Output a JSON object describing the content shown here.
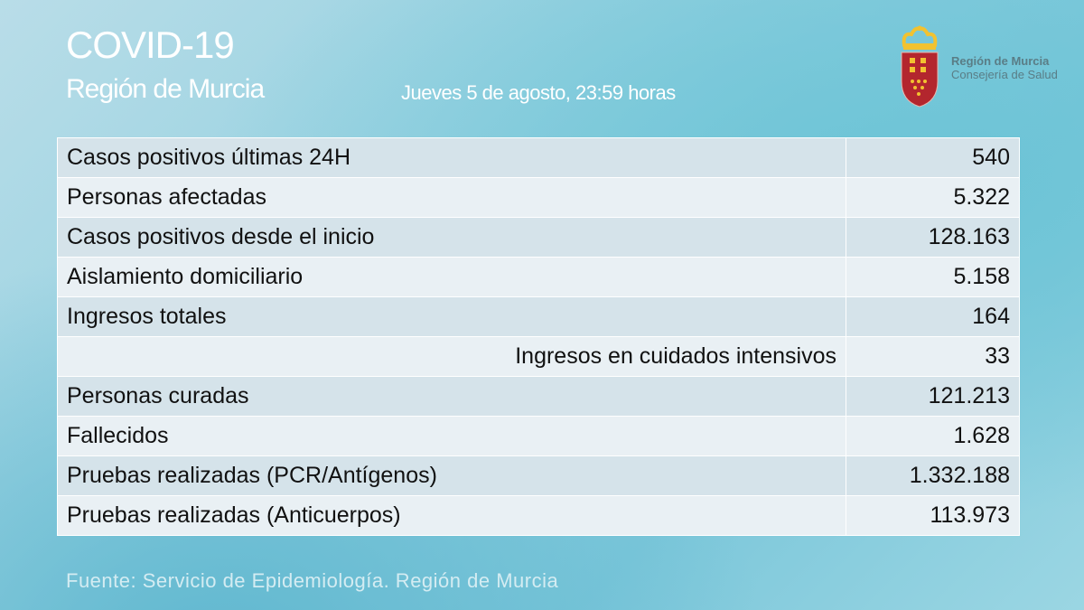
{
  "header": {
    "title": "COVID-19",
    "subtitle": "Región de Murcia",
    "date": "Jueves 5 de agosto, 23:59 horas"
  },
  "logo": {
    "line1": "Región de Murcia",
    "line2": "Consejería de Salud",
    "shield_color": "#b3262e",
    "crown_color": "#f2c230"
  },
  "rows": [
    {
      "label": "Casos positivos últimas 24H",
      "value": "540"
    },
    {
      "label": "Personas afectadas",
      "value": "5.322"
    },
    {
      "label": "Casos positivos desde el inicio",
      "value": "128.163"
    },
    {
      "label": "Aislamiento domiciliario",
      "value": "5.158"
    },
    {
      "label": "Ingresos totales",
      "value": "164"
    },
    {
      "label": "Ingresos en cuidados intensivos",
      "value": "33"
    },
    {
      "label": "Personas curadas",
      "value": "121.213"
    },
    {
      "label": "Fallecidos",
      "value": "1.628"
    },
    {
      "label": "Pruebas realizadas (PCR/Antígenos)",
      "value": "1.332.188"
    },
    {
      "label": "Pruebas realizadas (Anticuerpos)",
      "value": "113.973"
    }
  ],
  "source": "Fuente: Servicio de Epidemiología. Región de Murcia"
}
